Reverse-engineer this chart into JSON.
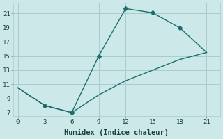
{
  "xlabel": "Humidex (Indice chaleur)",
  "ylabel": "",
  "background_color": "#cce8e8",
  "grid_color": "#aacccc",
  "line_color": "#1a6e6e",
  "x_ticks": [
    0,
    3,
    6,
    9,
    12,
    15,
    18,
    21
  ],
  "y_ticks": [
    7,
    9,
    11,
    13,
    15,
    17,
    19,
    21
  ],
  "ylim": [
    6.5,
    22.5
  ],
  "xlim": [
    -0.5,
    22.5
  ],
  "line1_x": [
    0,
    3,
    6,
    9,
    12,
    15,
    18,
    21
  ],
  "line1_y": [
    10.5,
    8.0,
    7.0,
    15.0,
    21.7,
    21.1,
    19.0,
    15.5
  ],
  "line2_x": [
    0,
    3,
    6,
    9,
    12,
    15,
    18,
    21
  ],
  "line2_y": [
    10.5,
    8.0,
    7.0,
    9.5,
    11.5,
    13.0,
    14.5,
    15.5
  ],
  "marker": "D",
  "markersize": 3,
  "linewidth": 1.0,
  "tick_fontsize": 6.5,
  "xlabel_fontsize": 7.5
}
